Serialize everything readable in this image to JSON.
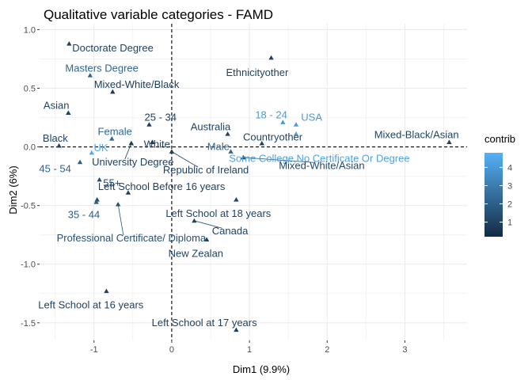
{
  "chart_data": {
    "type": "scatter",
    "title": "Qualitative variable categories - FAMD",
    "xlabel": "Dim1 (9.9%)",
    "ylabel": "Dim2 (6%)",
    "xlim": [
      -1.7,
      3.8
    ],
    "ylim": [
      -1.65,
      1.05
    ],
    "x_ticks": [
      -1,
      0,
      1,
      2,
      3
    ],
    "y_ticks": [
      1.0,
      0.5,
      0.0,
      -0.5,
      -1.0,
      -1.5
    ],
    "x_tick_labels": [
      "-1",
      "0",
      "1",
      "2",
      "3"
    ],
    "y_tick_labels": [
      "1.0",
      "0.5",
      "0.0",
      "-0.5",
      "-1.0",
      "-1.5"
    ],
    "grid": true,
    "reference_lines": {
      "x": 0,
      "y": 0,
      "style": "dashed"
    },
    "legend": {
      "title": "contrib",
      "position": "right",
      "ticks": [
        1,
        2,
        3,
        4
      ],
      "range": [
        0.2,
        4.8
      ],
      "colors": {
        "low": "#132B43",
        "high": "#56B1F7"
      }
    },
    "points": [
      {
        "label": "Doctorate Degree",
        "x": -1.32,
        "y": 0.88,
        "contrib": 1.0,
        "lx": -1.28,
        "ly": 0.84,
        "anchor": "start"
      },
      {
        "label": "Masters Degree",
        "x": -1.05,
        "y": 0.61,
        "contrib": 2.2,
        "lx": -1.37,
        "ly": 0.67,
        "anchor": "start"
      },
      {
        "label": "Mixed-White/Black",
        "x": -0.76,
        "y": 0.47,
        "contrib": 0.7,
        "lx": -1.0,
        "ly": 0.53,
        "anchor": "start"
      },
      {
        "label": "Asian",
        "x": -1.33,
        "y": 0.29,
        "contrib": 1.0,
        "lx": -1.65,
        "ly": 0.35,
        "anchor": "start"
      },
      {
        "label": "25 - 34",
        "x": -0.29,
        "y": 0.19,
        "contrib": 0.8,
        "lx": -0.35,
        "ly": 0.25,
        "anchor": "start"
      },
      {
        "label": "Ethnicityother",
        "x": 1.28,
        "y": 0.76,
        "contrib": 1.0,
        "lx": 1.1,
        "ly": 0.63,
        "anchor": "middle"
      },
      {
        "label": "Australia",
        "x": 0.72,
        "y": 0.11,
        "contrib": 1.1,
        "lx": 0.5,
        "ly": 0.17,
        "anchor": "middle"
      },
      {
        "label": "18 - 24",
        "x": 1.43,
        "y": 0.21,
        "contrib": 4.0,
        "lx": 1.28,
        "ly": 0.27,
        "anchor": "middle"
      },
      {
        "label": "USA",
        "x": 1.6,
        "y": 0.19,
        "contrib": 4.0,
        "lx": 1.8,
        "ly": 0.25,
        "anchor": "middle"
      },
      {
        "label": "Countryother",
        "x": 1.16,
        "y": 0.03,
        "contrib": 1.0,
        "lx": 1.3,
        "ly": 0.08,
        "anchor": "middle"
      },
      {
        "label": "Some College,No Certificate Or Degree",
        "x": 1.6,
        "y": 0.11,
        "contrib": 4.3,
        "lx": 1.9,
        "ly": -0.1,
        "anchor": "middle"
      },
      {
        "label": "Mixed-Black/Asian",
        "x": 3.57,
        "y": 0.04,
        "contrib": 1.1,
        "lx": 3.15,
        "ly": 0.1,
        "anchor": "middle"
      },
      {
        "label": "Female",
        "x": -0.77,
        "y": 0.07,
        "contrib": 2.3,
        "lx": -0.73,
        "ly": 0.13,
        "anchor": "middle"
      },
      {
        "label": "Black",
        "x": -1.45,
        "y": 0.01,
        "contrib": 1.0,
        "lx": -1.66,
        "ly": 0.07,
        "anchor": "start"
      },
      {
        "label": "UK",
        "x": -1.03,
        "y": -0.05,
        "contrib": 4.6,
        "lx": -0.91,
        "ly": -0.01,
        "anchor": "middle"
      },
      {
        "label": "White",
        "x": -0.25,
        "y": 0.04,
        "contrib": 0.9,
        "lx": -0.19,
        "ly": 0.02,
        "anchor": "middle"
      },
      {
        "label": "Male",
        "x": 0.76,
        "y": -0.04,
        "contrib": 2.3,
        "lx": 0.6,
        "ly": 0.0,
        "anchor": "middle"
      },
      {
        "label": "University Degree",
        "x": -0.52,
        "y": 0.03,
        "contrib": 0.9,
        "lx": -0.5,
        "ly": -0.13,
        "anchor": "middle",
        "connector": true
      },
      {
        "label": "Republic of Ireland",
        "x": 0.0,
        "y": -0.04,
        "contrib": 0.9,
        "lx": 0.44,
        "ly": -0.2,
        "anchor": "middle",
        "connector": true
      },
      {
        "label": "Mixed-White/Asian",
        "x": 0.92,
        "y": -0.09,
        "contrib": 1.2,
        "lx": 1.93,
        "ly": -0.16,
        "anchor": "middle",
        "connector": true
      },
      {
        "label": "45 - 54",
        "x": -1.18,
        "y": -0.13,
        "contrib": 2.0,
        "lx": -1.5,
        "ly": -0.19,
        "anchor": "middle"
      },
      {
        "label": "University Degree",
        "skip": true,
        "x": -0.52,
        "y": 0.03,
        "contrib": 0.9
      },
      {
        "label": "(University Degree point)",
        "skip": true,
        "x": -0.93,
        "y": -0.28,
        "contrib": 1.4
      },
      {
        "label": "55+",
        "x": -0.96,
        "y": -0.45,
        "contrib": 1.4,
        "lx": -0.77,
        "ly": -0.31,
        "anchor": "middle"
      },
      {
        "label": "Left School Before 16 years",
        "x": -0.56,
        "y": -0.39,
        "contrib": 1.0,
        "lx": -0.13,
        "ly": -0.34,
        "anchor": "middle"
      },
      {
        "label": "35 - 44",
        "x": -0.97,
        "y": -0.47,
        "contrib": 1.9,
        "lx": -1.13,
        "ly": -0.58,
        "anchor": "middle"
      },
      {
        "label": "Professional Certificate/ Diploma",
        "x": -0.69,
        "y": -0.49,
        "contrib": 1.5,
        "lx": -0.52,
        "ly": -0.78,
        "anchor": "middle",
        "connector": true
      },
      {
        "label": "Left School at 18 years",
        "x": 0.83,
        "y": -0.45,
        "contrib": 1.1,
        "lx": 0.6,
        "ly": -0.57,
        "anchor": "middle"
      },
      {
        "label": "Canada",
        "x": 0.29,
        "y": -0.63,
        "contrib": 1.1,
        "lx": 0.75,
        "ly": -0.72,
        "anchor": "middle",
        "connector": true
      },
      {
        "label": "New Zealan",
        "x": 0.45,
        "y": -0.79,
        "contrib": 1.0,
        "lx": 0.31,
        "ly": -0.91,
        "anchor": "middle"
      },
      {
        "label": "Left School at 16 years",
        "x": -0.84,
        "y": -1.23,
        "contrib": 1.0,
        "lx": -1.04,
        "ly": -1.35,
        "anchor": "middle"
      },
      {
        "label": "Left School at 17 years",
        "x": 0.83,
        "y": -1.56,
        "contrib": 1.0,
        "lx": 0.42,
        "ly": -1.5,
        "anchor": "middle"
      }
    ]
  }
}
